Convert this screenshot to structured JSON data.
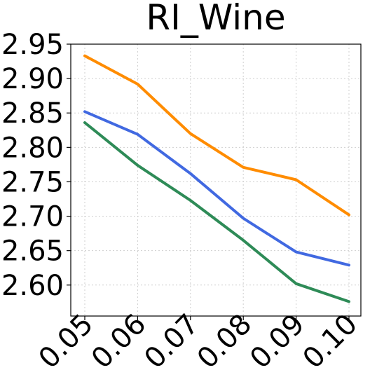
{
  "chart_data": {
    "type": "line",
    "title": "RI_Wine",
    "xlabel": "",
    "ylabel": "",
    "x": [
      0.05,
      0.06,
      0.07,
      0.08,
      0.09,
      0.1
    ],
    "x_tick_labels": [
      "0.05",
      "0.06",
      "0.07",
      "0.08",
      "0.09",
      "0.10"
    ],
    "ylim": [
      2.555,
      2.95
    ],
    "y_ticks": [
      2.6,
      2.65,
      2.7,
      2.75,
      2.8,
      2.85,
      2.9,
      2.95
    ],
    "y_tick_labels": [
      "2.60",
      "2.65",
      "2.70",
      "2.75",
      "2.80",
      "2.85",
      "2.90",
      "2.95"
    ],
    "grid": true,
    "series": [
      {
        "color": "#ff8c00",
        "values": [
          2.933,
          2.892,
          2.82,
          2.771,
          2.753,
          2.702
        ]
      },
      {
        "color": "#4169e1",
        "values": [
          2.852,
          2.819,
          2.762,
          2.697,
          2.648,
          2.629
        ]
      },
      {
        "color": "#2e8b57",
        "values": [
          2.836,
          2.774,
          2.723,
          2.665,
          2.602,
          2.576
        ]
      }
    ]
  }
}
